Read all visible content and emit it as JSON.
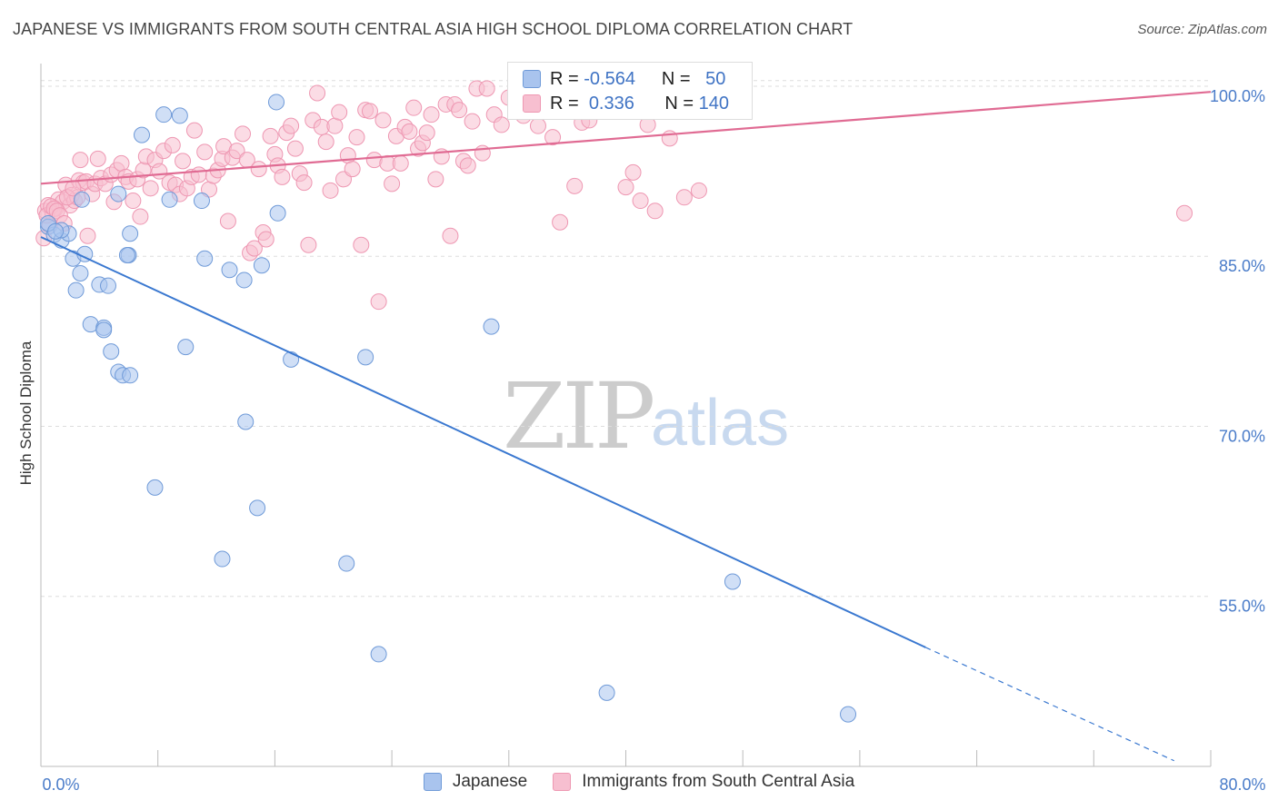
{
  "title": "JAPANESE VS IMMIGRANTS FROM SOUTH CENTRAL ASIA HIGH SCHOOL DIPLOMA CORRELATION CHART",
  "source": "Source: ZipAtlas.com",
  "watermark": {
    "zip": "ZIP",
    "atlas": "atlas"
  },
  "legend": {
    "rows": [
      {
        "r_label": "R =",
        "r_value": "-0.564",
        "n_label": "N =",
        "n_value": "50",
        "color": "#a9c4ee"
      },
      {
        "r_label": "R =",
        "r_value": "0.336",
        "n_label": "N =",
        "n_value": "140",
        "color": "#f5b6c9"
      }
    ]
  },
  "bottom_legend": [
    "Japanese",
    "Immigrants from South Central Asia"
  ],
  "colors": {
    "blue_fill": "#a9c4ee",
    "blue_stroke": "#6f9ad8",
    "blue_line": "#3a78d0",
    "pink_fill": "#f7bfd0",
    "pink_stroke": "#ee97b2",
    "pink_line": "#e06b93",
    "grid": "#dddddd",
    "axis_text": "#4a7cc9"
  },
  "chart_data": {
    "type": "scatter",
    "xlabel": "",
    "ylabel": "High School Diploma",
    "xlim": [
      0,
      80
    ],
    "ylim": [
      40,
      102
    ],
    "x_tick_labels": [
      "0.0%",
      "80.0%"
    ],
    "y_ticks": [
      55,
      70,
      85,
      100
    ],
    "y_tick_labels": [
      "55.0%",
      "70.0%",
      "85.0%",
      "100.0%"
    ],
    "grid": true,
    "legend_position": "top-center",
    "series": [
      {
        "name": "Japanese",
        "trend": {
          "x0": 0,
          "y0": 86.7,
          "x1": 60.5,
          "y1": 50.5,
          "dashed_to_x": 77.5,
          "dashed_to_y": 40.5
        },
        "points": [
          [
            0.5,
            87.6
          ],
          [
            0.9,
            86.9
          ],
          [
            1.4,
            86.4
          ],
          [
            1.9,
            87.0
          ],
          [
            2.2,
            84.8
          ],
          [
            2.4,
            82.0
          ],
          [
            2.7,
            83.5
          ],
          [
            3.0,
            85.2
          ],
          [
            2.8,
            90.0
          ],
          [
            4.0,
            82.5
          ],
          [
            4.6,
            82.4
          ],
          [
            5.3,
            90.5
          ],
          [
            6.0,
            85.1
          ],
          [
            6.1,
            87.0
          ],
          [
            5.9,
            85.1
          ],
          [
            6.9,
            95.7
          ],
          [
            8.4,
            97.5
          ],
          [
            8.8,
            90.0
          ],
          [
            9.5,
            97.4
          ],
          [
            11.2,
            84.8
          ],
          [
            12.9,
            83.8
          ],
          [
            13.9,
            82.9
          ],
          [
            15.1,
            84.2
          ],
          [
            16.2,
            88.8
          ],
          [
            16.1,
            98.6
          ],
          [
            3.4,
            79.0
          ],
          [
            4.3,
            78.7
          ],
          [
            4.3,
            78.5
          ],
          [
            4.8,
            76.6
          ],
          [
            5.3,
            74.8
          ],
          [
            5.6,
            74.5
          ],
          [
            6.1,
            74.5
          ],
          [
            9.9,
            77.0
          ],
          [
            17.1,
            75.9
          ],
          [
            22.2,
            76.1
          ],
          [
            30.8,
            78.8
          ],
          [
            14.0,
            70.4
          ],
          [
            7.8,
            64.6
          ],
          [
            14.8,
            62.8
          ],
          [
            12.4,
            58.3
          ],
          [
            20.9,
            57.9
          ],
          [
            47.3,
            56.3
          ],
          [
            23.1,
            49.9
          ],
          [
            38.7,
            46.5
          ],
          [
            55.2,
            44.6
          ],
          [
            38.5,
            100.1
          ],
          [
            11.0,
            89.9
          ],
          [
            1.4,
            87.3
          ],
          [
            0.5,
            87.9
          ],
          [
            1.0,
            87.2
          ]
        ]
      },
      {
        "name": "Immigrants from South Central Asia",
        "trend": {
          "x0": 0,
          "y0": 91.4,
          "x1": 80,
          "y1": 99.5
        },
        "points": [
          [
            0.3,
            89.0
          ],
          [
            0.5,
            89.5
          ],
          [
            0.6,
            87.7
          ],
          [
            0.8,
            88.8
          ],
          [
            1.0,
            89.2
          ],
          [
            1.2,
            90.0
          ],
          [
            1.5,
            89.8
          ],
          [
            1.7,
            91.3
          ],
          [
            2.0,
            89.5
          ],
          [
            2.1,
            90.4
          ],
          [
            2.3,
            89.9
          ],
          [
            2.5,
            90.2
          ],
          [
            2.6,
            91.7
          ],
          [
            2.9,
            91.5
          ],
          [
            3.2,
            86.8
          ],
          [
            3.1,
            91.6
          ],
          [
            3.5,
            90.5
          ],
          [
            3.7,
            91.4
          ],
          [
            3.9,
            93.6
          ],
          [
            4.1,
            91.9
          ],
          [
            4.4,
            91.4
          ],
          [
            4.8,
            92.2
          ],
          [
            5.0,
            89.8
          ],
          [
            5.2,
            92.6
          ],
          [
            5.5,
            93.2
          ],
          [
            5.8,
            92.0
          ],
          [
            6.0,
            91.6
          ],
          [
            6.3,
            89.9
          ],
          [
            6.6,
            91.8
          ],
          [
            6.8,
            88.5
          ],
          [
            7.0,
            92.6
          ],
          [
            7.2,
            93.8
          ],
          [
            7.5,
            91.0
          ],
          [
            7.8,
            93.5
          ],
          [
            8.1,
            92.5
          ],
          [
            8.4,
            94.3
          ],
          [
            8.8,
            91.5
          ],
          [
            9.0,
            94.8
          ],
          [
            9.2,
            91.3
          ],
          [
            9.5,
            90.5
          ],
          [
            9.7,
            93.4
          ],
          [
            10.0,
            91.0
          ],
          [
            10.3,
            92.0
          ],
          [
            10.5,
            96.1
          ],
          [
            10.8,
            92.2
          ],
          [
            11.2,
            94.2
          ],
          [
            11.5,
            90.9
          ],
          [
            11.8,
            92.1
          ],
          [
            12.1,
            92.6
          ],
          [
            12.4,
            93.6
          ],
          [
            12.5,
            94.7
          ],
          [
            12.8,
            88.1
          ],
          [
            13.1,
            93.7
          ],
          [
            13.4,
            94.3
          ],
          [
            13.8,
            95.8
          ],
          [
            14.1,
            93.5
          ],
          [
            14.3,
            85.3
          ],
          [
            14.6,
            85.7
          ],
          [
            14.9,
            92.7
          ],
          [
            15.2,
            87.1
          ],
          [
            15.4,
            86.5
          ],
          [
            15.7,
            95.6
          ],
          [
            16.0,
            94.0
          ],
          [
            16.2,
            93.0
          ],
          [
            16.5,
            92.0
          ],
          [
            16.8,
            95.9
          ],
          [
            17.1,
            96.5
          ],
          [
            17.4,
            94.5
          ],
          [
            17.7,
            92.3
          ],
          [
            18.0,
            91.5
          ],
          [
            18.3,
            86.0
          ],
          [
            18.6,
            97.0
          ],
          [
            18.9,
            99.4
          ],
          [
            19.2,
            96.4
          ],
          [
            19.5,
            95.1
          ],
          [
            19.8,
            90.8
          ],
          [
            20.1,
            96.5
          ],
          [
            20.4,
            97.7
          ],
          [
            20.7,
            91.8
          ],
          [
            21.0,
            93.9
          ],
          [
            21.3,
            92.7
          ],
          [
            21.6,
            95.5
          ],
          [
            21.9,
            86.0
          ],
          [
            22.2,
            97.9
          ],
          [
            22.5,
            97.8
          ],
          [
            22.8,
            93.5
          ],
          [
            23.1,
            81.0
          ],
          [
            23.4,
            97.0
          ],
          [
            23.7,
            93.2
          ],
          [
            24.0,
            91.4
          ],
          [
            24.3,
            95.6
          ],
          [
            24.6,
            93.2
          ],
          [
            24.9,
            96.4
          ],
          [
            25.2,
            96.0
          ],
          [
            25.5,
            98.1
          ],
          [
            25.8,
            94.5
          ],
          [
            26.1,
            95.0
          ],
          [
            26.4,
            95.9
          ],
          [
            26.7,
            97.5
          ],
          [
            27.0,
            91.8
          ],
          [
            27.4,
            93.8
          ],
          [
            27.7,
            98.4
          ],
          [
            28.0,
            86.8
          ],
          [
            28.3,
            98.4
          ],
          [
            28.6,
            97.9
          ],
          [
            28.9,
            93.4
          ],
          [
            29.2,
            93.0
          ],
          [
            29.5,
            96.9
          ],
          [
            29.8,
            99.8
          ],
          [
            30.2,
            94.1
          ],
          [
            30.5,
            99.8
          ],
          [
            31.0,
            97.5
          ],
          [
            31.5,
            96.6
          ],
          [
            32.0,
            99.0
          ],
          [
            33.0,
            97.4
          ],
          [
            34.0,
            96.5
          ],
          [
            35.0,
            95.5
          ],
          [
            36.0,
            98.0
          ],
          [
            37.0,
            96.8
          ],
          [
            38.0,
            98.5
          ],
          [
            39.0,
            99.3
          ],
          [
            40.0,
            91.1
          ],
          [
            40.5,
            92.4
          ],
          [
            41.0,
            89.9
          ],
          [
            41.5,
            96.6
          ],
          [
            42.0,
            89.0
          ],
          [
            43.0,
            95.4
          ],
          [
            44.0,
            90.2
          ],
          [
            45.0,
            90.8
          ],
          [
            35.5,
            88.0
          ],
          [
            36.5,
            91.2
          ],
          [
            37.5,
            97.0
          ],
          [
            78.2,
            88.8
          ],
          [
            0.2,
            86.6
          ],
          [
            0.4,
            88.6
          ],
          [
            0.7,
            89.4
          ],
          [
            0.9,
            89.2
          ],
          [
            1.1,
            89.0
          ],
          [
            1.3,
            88.6
          ],
          [
            1.6,
            87.9
          ],
          [
            1.8,
            90.2
          ],
          [
            2.2,
            91.0
          ],
          [
            2.7,
            93.5
          ]
        ]
      }
    ]
  }
}
